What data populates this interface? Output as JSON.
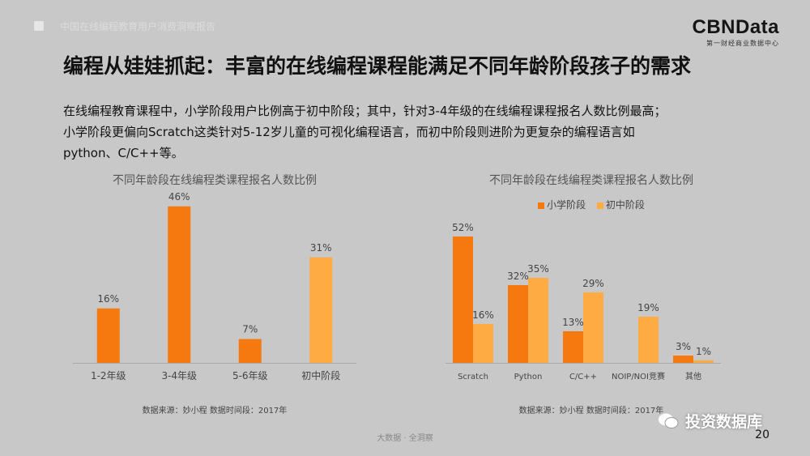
{
  "header": {
    "breadcrumb": "中国在线编程教育用户消费洞察报告",
    "brand_name": "CBNData",
    "brand_sub": "第一财经商业数据中心"
  },
  "title": "编程从娃娃抓起：丰富的在线编程课程能满足不同年龄阶段孩子的需求",
  "summary": [
    "在线编程教育课程中，小学阶段用户比例高于初中阶段；其中，针对3-4年级的在线编程课程报名人数比例最高；",
    "小学阶段更偏向Scratch这类针对5-12岁儿童的可视化编程语言，而初中阶段则进阶为更复杂的编程语言如",
    "python、C/C++等。"
  ],
  "colors": {
    "primary": "#f5790f",
    "secondary": "#fdab42"
  },
  "footer": {
    "text": "大数据 · 全洞察",
    "page": "20",
    "watermark": "投资数据库"
  },
  "chart_data": [
    {
      "type": "bar",
      "title": "不同年龄段在线编程类课程报名人数比例",
      "categories": [
        "1-2年级",
        "3-4年级",
        "5-6年级",
        "初中阶段"
      ],
      "values": [
        16,
        46,
        7,
        31
      ],
      "labels": [
        "16%",
        "46%",
        "7%",
        "31%"
      ],
      "colors": [
        "#f5790f",
        "#f5790f",
        "#f5790f",
        "#fdab42"
      ],
      "ylim": [
        0,
        50
      ],
      "source": "数据来源：妙小程  数据时间段：2017年"
    },
    {
      "type": "bar",
      "title": "不同年龄段在线编程类课程报名人数比例",
      "categories": [
        "Scratch",
        "Python",
        "C/C++",
        "NOIP/NOI竞赛",
        "其他"
      ],
      "series": [
        {
          "name": "小学阶段",
          "color": "#f5790f",
          "values": [
            52,
            32,
            13,
            null,
            3
          ],
          "labels": [
            "52%",
            "32%",
            "13%",
            "",
            "3%"
          ]
        },
        {
          "name": "初中阶段",
          "color": "#fdab42",
          "values": [
            16,
            35,
            29,
            19,
            1
          ],
          "labels": [
            "16%",
            "35%",
            "29%",
            "19%",
            "1%"
          ]
        }
      ],
      "ylim": [
        0,
        60
      ],
      "source": "数据来源：妙小程  数据时间段：2017年"
    }
  ]
}
